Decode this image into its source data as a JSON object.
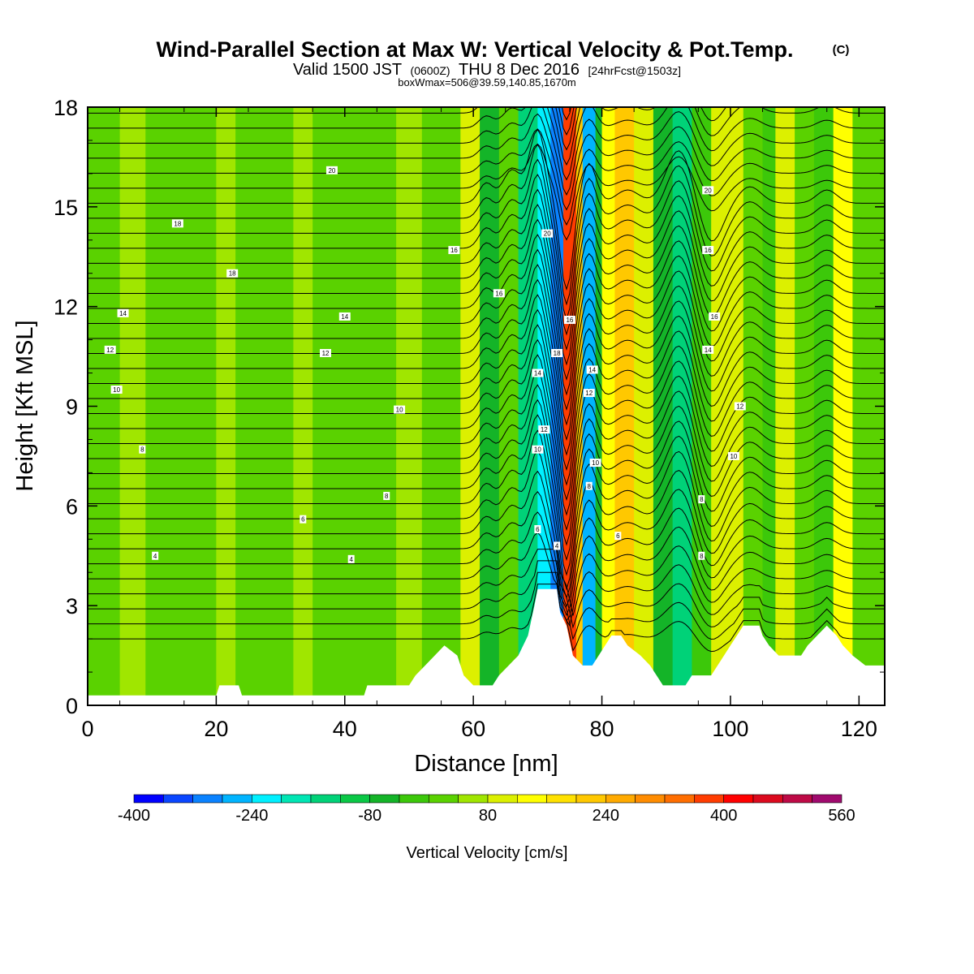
{
  "header": {
    "title": "Wind-Parallel Section at Max W: Vertical Velocity & Pot.Temp.",
    "title_mark": "(C)",
    "subtitle_valid": "Valid 1500 JST",
    "subtitle_z": "(0600Z)",
    "subtitle_date": "THU 8 Dec 2016",
    "subtitle_fcst": "[24hrFcst@1503z]",
    "boxline": "boxWmax=506@39.59,140.85,1670m"
  },
  "chart_data": {
    "type": "heatmap",
    "xlabel": "Distance [nm]",
    "ylabel": "Height [Kft MSL]",
    "xlim": [
      0,
      124
    ],
    "ylim": [
      0,
      18
    ],
    "xticks": [
      "0",
      "20",
      "40",
      "60",
      "80",
      "100",
      "120"
    ],
    "yticks": [
      "0",
      "3",
      "6",
      "9",
      "12",
      "15",
      "18"
    ],
    "xtick_values": [
      0,
      20,
      40,
      60,
      80,
      100,
      120
    ],
    "ytick_values": [
      0,
      3,
      6,
      9,
      12,
      15,
      18
    ],
    "colorbar": {
      "label": "Vertical Velocity [cm/s]",
      "ticks": [
        "-400",
        "-240",
        "-80",
        "80",
        "240",
        "400",
        "560"
      ],
      "levels_min": -400,
      "levels_step": 40,
      "colors": [
        "#0000ff",
        "#0a46ff",
        "#0a82ff",
        "#00b4ff",
        "#00f0ff",
        "#00e6b4",
        "#00d278",
        "#0ac846",
        "#14b428",
        "#3cc80a",
        "#5ad200",
        "#a0e600",
        "#dcf000",
        "#ffff00",
        "#ffe100",
        "#ffc800",
        "#ffaa00",
        "#ff8c00",
        "#ff6e00",
        "#ff3c00",
        "#ff0000",
        "#dc0a1e",
        "#be0a46",
        "#a00a6e",
        "#8c0a8c",
        "#640a9b"
      ]
    },
    "velocity_bands": [
      {
        "x": [
          0,
          5
        ],
        "w": 0
      },
      {
        "x": [
          5,
          9
        ],
        "w": 40
      },
      {
        "x": [
          9,
          20
        ],
        "w": 0
      },
      {
        "x": [
          20,
          23
        ],
        "w": 40
      },
      {
        "x": [
          23,
          32
        ],
        "w": 0
      },
      {
        "x": [
          32,
          35
        ],
        "w": 40
      },
      {
        "x": [
          35,
          48
        ],
        "w": 0
      },
      {
        "x": [
          48,
          52
        ],
        "w": 40
      },
      {
        "x": [
          52,
          58
        ],
        "w": 0
      },
      {
        "x": [
          58,
          61
        ],
        "w": 100
      },
      {
        "x": [
          61,
          64
        ],
        "w": -60
      },
      {
        "x": [
          64,
          67
        ],
        "w": 20
      },
      {
        "x": [
          67,
          70
        ],
        "w": -140
      },
      {
        "x": [
          70,
          72
        ],
        "w": -220
      },
      {
        "x": [
          72,
          74
        ],
        "w": -300
      },
      {
        "x": [
          74,
          76
        ],
        "w": 380
      },
      {
        "x": [
          76,
          77
        ],
        "w": 200
      },
      {
        "x": [
          77,
          79
        ],
        "w": -260
      },
      {
        "x": [
          79,
          80
        ],
        "w": -60
      },
      {
        "x": [
          80,
          82
        ],
        "w": 120
      },
      {
        "x": [
          82,
          85
        ],
        "w": 200
      },
      {
        "x": [
          85,
          88
        ],
        "w": 110
      },
      {
        "x": [
          88,
          91
        ],
        "w": -60
      },
      {
        "x": [
          91,
          94
        ],
        "w": -140
      },
      {
        "x": [
          94,
          97
        ],
        "w": -40
      },
      {
        "x": [
          97,
          102
        ],
        "w": 110
      },
      {
        "x": [
          102,
          105
        ],
        "w": 20
      },
      {
        "x": [
          105,
          107
        ],
        "w": -40
      },
      {
        "x": [
          107,
          110
        ],
        "w": 90
      },
      {
        "x": [
          110,
          113
        ],
        "w": 30
      },
      {
        "x": [
          113,
          116
        ],
        "w": -40
      },
      {
        "x": [
          116,
          119
        ],
        "w": 130
      },
      {
        "x": [
          119,
          124
        ],
        "w": 20
      }
    ],
    "terrain_kft": [
      [
        0,
        0.3
      ],
      [
        20,
        0.3
      ],
      [
        20.5,
        0.6
      ],
      [
        23.5,
        0.6
      ],
      [
        24,
        0.3
      ],
      [
        43,
        0.3
      ],
      [
        43.5,
        0.6
      ],
      [
        50,
        0.6
      ],
      [
        51,
        0.9
      ],
      [
        52.5,
        1.2
      ],
      [
        54,
        1.5
      ],
      [
        55.5,
        1.8
      ],
      [
        57.5,
        1.5
      ],
      [
        58.5,
        0.9
      ],
      [
        60,
        0.6
      ],
      [
        63,
        0.6
      ],
      [
        64,
        0.9
      ],
      [
        65.5,
        1.2
      ],
      [
        67,
        1.5
      ],
      [
        68.5,
        2.1
      ],
      [
        69.5,
        3.0
      ],
      [
        70,
        3.5
      ],
      [
        73,
        3.5
      ],
      [
        73.5,
        2.8
      ],
      [
        74.5,
        2.4
      ],
      [
        75.5,
        1.5
      ],
      [
        77,
        1.2
      ],
      [
        78.5,
        1.2
      ],
      [
        79.5,
        1.5
      ],
      [
        80.5,
        1.8
      ],
      [
        81.5,
        2.1
      ],
      [
        83,
        2.1
      ],
      [
        84,
        1.8
      ],
      [
        86,
        1.5
      ],
      [
        87.5,
        1.2
      ],
      [
        88.5,
        0.9
      ],
      [
        89.5,
        0.6
      ],
      [
        93,
        0.6
      ],
      [
        94,
        0.9
      ],
      [
        97,
        0.9
      ],
      [
        98,
        1.2
      ],
      [
        99,
        1.5
      ],
      [
        100,
        1.8
      ],
      [
        101,
        2.1
      ],
      [
        102,
        2.4
      ],
      [
        104.5,
        2.4
      ],
      [
        105,
        2.1
      ],
      [
        106,
        1.8
      ],
      [
        107.5,
        1.5
      ],
      [
        111,
        1.5
      ],
      [
        112,
        1.8
      ],
      [
        113.5,
        2.1
      ],
      [
        115,
        2.4
      ],
      [
        116.5,
        2.1
      ],
      [
        117.5,
        1.8
      ],
      [
        119,
        1.5
      ],
      [
        121,
        1.2
      ],
      [
        122.5,
        1.2
      ],
      [
        124,
        1.2
      ]
    ],
    "isentrope_labels": [
      {
        "text": "20",
        "x": 38,
        "y": 16.1
      },
      {
        "text": "18",
        "x": 14,
        "y": 14.5
      },
      {
        "text": "16",
        "x": 57,
        "y": 13.7
      },
      {
        "text": "18",
        "x": 22.5,
        "y": 13.0
      },
      {
        "text": "14",
        "x": 5.5,
        "y": 11.8
      },
      {
        "text": "14",
        "x": 40,
        "y": 11.7
      },
      {
        "text": "12",
        "x": 3.5,
        "y": 10.7
      },
      {
        "text": "12",
        "x": 37,
        "y": 10.6
      },
      {
        "text": "10",
        "x": 4.5,
        "y": 9.5
      },
      {
        "text": "10",
        "x": 48.5,
        "y": 8.9
      },
      {
        "text": "8",
        "x": 8.5,
        "y": 7.7
      },
      {
        "text": "8",
        "x": 46.5,
        "y": 6.3
      },
      {
        "text": "6",
        "x": 33.5,
        "y": 5.6
      },
      {
        "text": "4",
        "x": 10.5,
        "y": 4.5
      },
      {
        "text": "4",
        "x": 41,
        "y": 4.4
      },
      {
        "text": "16",
        "x": 64,
        "y": 12.4
      },
      {
        "text": "20",
        "x": 71.5,
        "y": 14.2
      },
      {
        "text": "16",
        "x": 75,
        "y": 11.6
      },
      {
        "text": "18",
        "x": 73,
        "y": 10.6
      },
      {
        "text": "14",
        "x": 70,
        "y": 10.0
      },
      {
        "text": "14",
        "x": 78.5,
        "y": 10.1
      },
      {
        "text": "12",
        "x": 78,
        "y": 9.4
      },
      {
        "text": "12",
        "x": 71,
        "y": 8.3
      },
      {
        "text": "10",
        "x": 70,
        "y": 7.7
      },
      {
        "text": "10",
        "x": 79,
        "y": 7.3
      },
      {
        "text": "8",
        "x": 78,
        "y": 6.6
      },
      {
        "text": "6",
        "x": 70,
        "y": 5.3
      },
      {
        "text": "6",
        "x": 82.5,
        "y": 5.1
      },
      {
        "text": "4",
        "x": 73,
        "y": 4.8
      },
      {
        "text": "20",
        "x": 96.5,
        "y": 15.5
      },
      {
        "text": "16",
        "x": 96.5,
        "y": 13.7
      },
      {
        "text": "16",
        "x": 97.5,
        "y": 11.7
      },
      {
        "text": "14",
        "x": 96.5,
        "y": 10.7
      },
      {
        "text": "12",
        "x": 101.5,
        "y": 9.0
      },
      {
        "text": "10",
        "x": 100.5,
        "y": 7.5
      },
      {
        "text": "8",
        "x": 95.5,
        "y": 6.2
      },
      {
        "text": "8",
        "x": 95.5,
        "y": 4.5
      }
    ]
  }
}
